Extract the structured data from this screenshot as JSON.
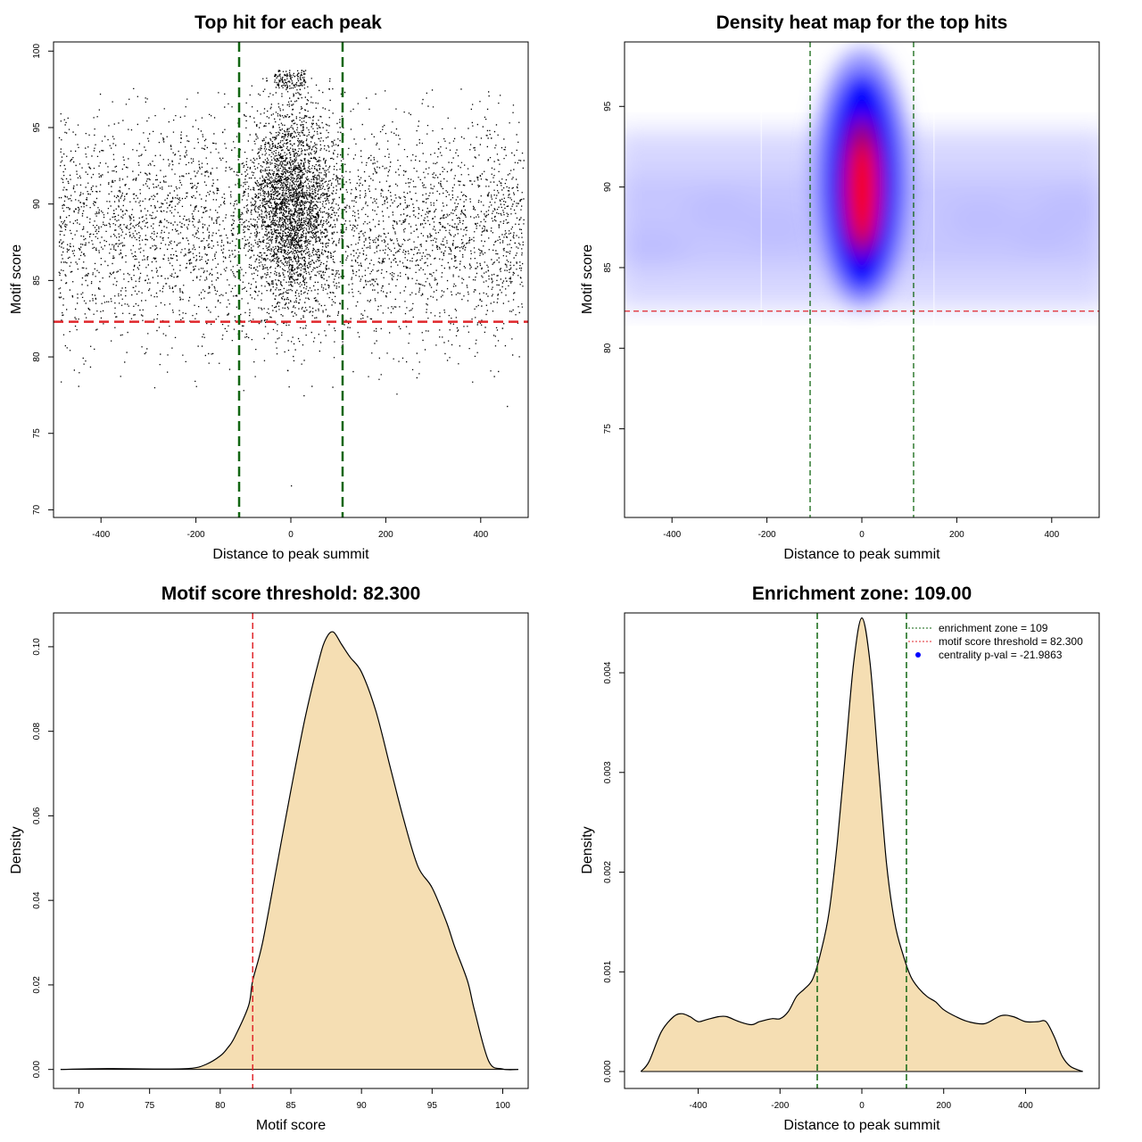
{
  "colors": {
    "threshold_line": "#e0262b",
    "zone_line": "#116611",
    "density_fill": "#f5deb3",
    "heat_low": "#ffffff",
    "heat_mid": "#0000ff",
    "heat_high": "#ff0000"
  },
  "chart_data": [
    {
      "id": "scatter",
      "type": "scatter",
      "title": "Top hit for each peak",
      "xlabel": "Distance to peak summit",
      "ylabel": "Motif score",
      "xlim": [
        -500,
        500
      ],
      "ylim": [
        69.5,
        100.6
      ],
      "xticks": [
        -400,
        -200,
        0,
        200,
        400
      ],
      "yticks": [
        70,
        75,
        80,
        85,
        90,
        95,
        100
      ],
      "threshold_y": 82.3,
      "zone_x": [
        -109,
        109
      ],
      "points_note": "thousands of points; wide band 80-97 across x, dense column near x=0 up to ~99",
      "notable_points": [
        [
          0,
          71.6
        ],
        [
          -485,
          78.4
        ],
        [
          455,
          76.8
        ],
        [
          -200,
          78.1
        ]
      ]
    },
    {
      "id": "heatmap",
      "type": "heatmap",
      "title": "Density heat map for the top hits",
      "xlabel": "Distance to peak summit",
      "ylabel": "Motif score",
      "xlim": [
        -500,
        500
      ],
      "ylim": [
        69.5,
        99.0
      ],
      "xticks": [
        -400,
        -200,
        0,
        200,
        400
      ],
      "yticks": [
        75,
        80,
        85,
        90,
        95
      ],
      "threshold_y": 82.3,
      "zone_x": [
        -109,
        109
      ],
      "hotspot": {
        "x": 0,
        "y": 90
      }
    },
    {
      "id": "score_density",
      "type": "area",
      "title": "Motif score threshold: 82.300",
      "xlabel": "Motif score",
      "ylabel": "Density",
      "xlim": [
        68.2,
        101.8
      ],
      "ylim": [
        -0.0045,
        0.108
      ],
      "xticks": [
        70,
        75,
        80,
        85,
        90,
        95,
        100
      ],
      "yticks": [
        0.0,
        0.02,
        0.04,
        0.06,
        0.08,
        0.1
      ],
      "ytick_labels": [
        "0.00",
        "0.02",
        "0.04",
        "0.06",
        "0.08",
        "0.10"
      ],
      "threshold_x": 82.3,
      "x": [
        68.7,
        72,
        76,
        78,
        79,
        80,
        80.5,
        81,
        82,
        82.3,
        83,
        84,
        85,
        86,
        87,
        87.5,
        88,
        88.6,
        89.2,
        90,
        91,
        92,
        93,
        94,
        95,
        96,
        96.6,
        97.5,
        98,
        99,
        100,
        101.1
      ],
      "y": [
        0.0,
        0.0002,
        0.0001,
        0.0003,
        0.0012,
        0.0032,
        0.005,
        0.0075,
        0.015,
        0.021,
        0.03,
        0.048,
        0.066,
        0.083,
        0.097,
        0.102,
        0.1035,
        0.1005,
        0.0975,
        0.094,
        0.085,
        0.072,
        0.059,
        0.048,
        0.043,
        0.035,
        0.029,
        0.021,
        0.014,
        0.002,
        0.0001,
        0.0
      ]
    },
    {
      "id": "distance_density",
      "type": "area",
      "title": "Enrichment zone: 109.00",
      "xlabel": "Distance to peak summit",
      "ylabel": "Density",
      "xlim": [
        -580,
        580
      ],
      "ylim": [
        -0.00017,
        0.0046
      ],
      "xticks": [
        -400,
        -200,
        0,
        200,
        400
      ],
      "yticks": [
        0.0,
        0.001,
        0.002,
        0.003,
        0.004
      ],
      "ytick_labels": [
        "0.000",
        "0.001",
        "0.002",
        "0.003",
        "0.004"
      ],
      "zone_x": [
        -109,
        109
      ],
      "x": [
        -540,
        -520,
        -490,
        -460,
        -440,
        -420,
        -400,
        -380,
        -350,
        -330,
        -300,
        -270,
        -250,
        -220,
        -200,
        -180,
        -160,
        -140,
        -120,
        -100,
        -80,
        -60,
        -40,
        -20,
        0,
        20,
        40,
        60,
        80,
        100,
        120,
        140,
        160,
        180,
        200,
        230,
        260,
        300,
        340,
        370,
        400,
        430,
        450,
        470,
        490,
        510,
        540
      ],
      "y": [
        0.0,
        0.0001,
        0.0004,
        0.00055,
        0.00058,
        0.00055,
        0.0005,
        0.00052,
        0.00055,
        0.00055,
        0.0005,
        0.00047,
        0.0005,
        0.00053,
        0.00053,
        0.0006,
        0.00075,
        0.00083,
        0.00093,
        0.0012,
        0.0016,
        0.0023,
        0.0032,
        0.0041,
        0.00455,
        0.0041,
        0.0031,
        0.0021,
        0.0015,
        0.00118,
        0.00095,
        0.00083,
        0.00075,
        0.0007,
        0.00062,
        0.00055,
        0.0005,
        0.00048,
        0.00056,
        0.00055,
        0.0005,
        0.0005,
        0.0005,
        0.00035,
        0.00015,
        5e-05,
        0.0
      ],
      "legend": {
        "position": "top-right",
        "entries": [
          {
            "label": "enrichment zone = 109",
            "style": "green-dotted-line"
          },
          {
            "label": "motif score threshold = 82.300",
            "style": "red-dotted-line"
          },
          {
            "label": "centrality p-val = -21.9863",
            "style": "blue-dot"
          }
        ]
      }
    }
  ]
}
